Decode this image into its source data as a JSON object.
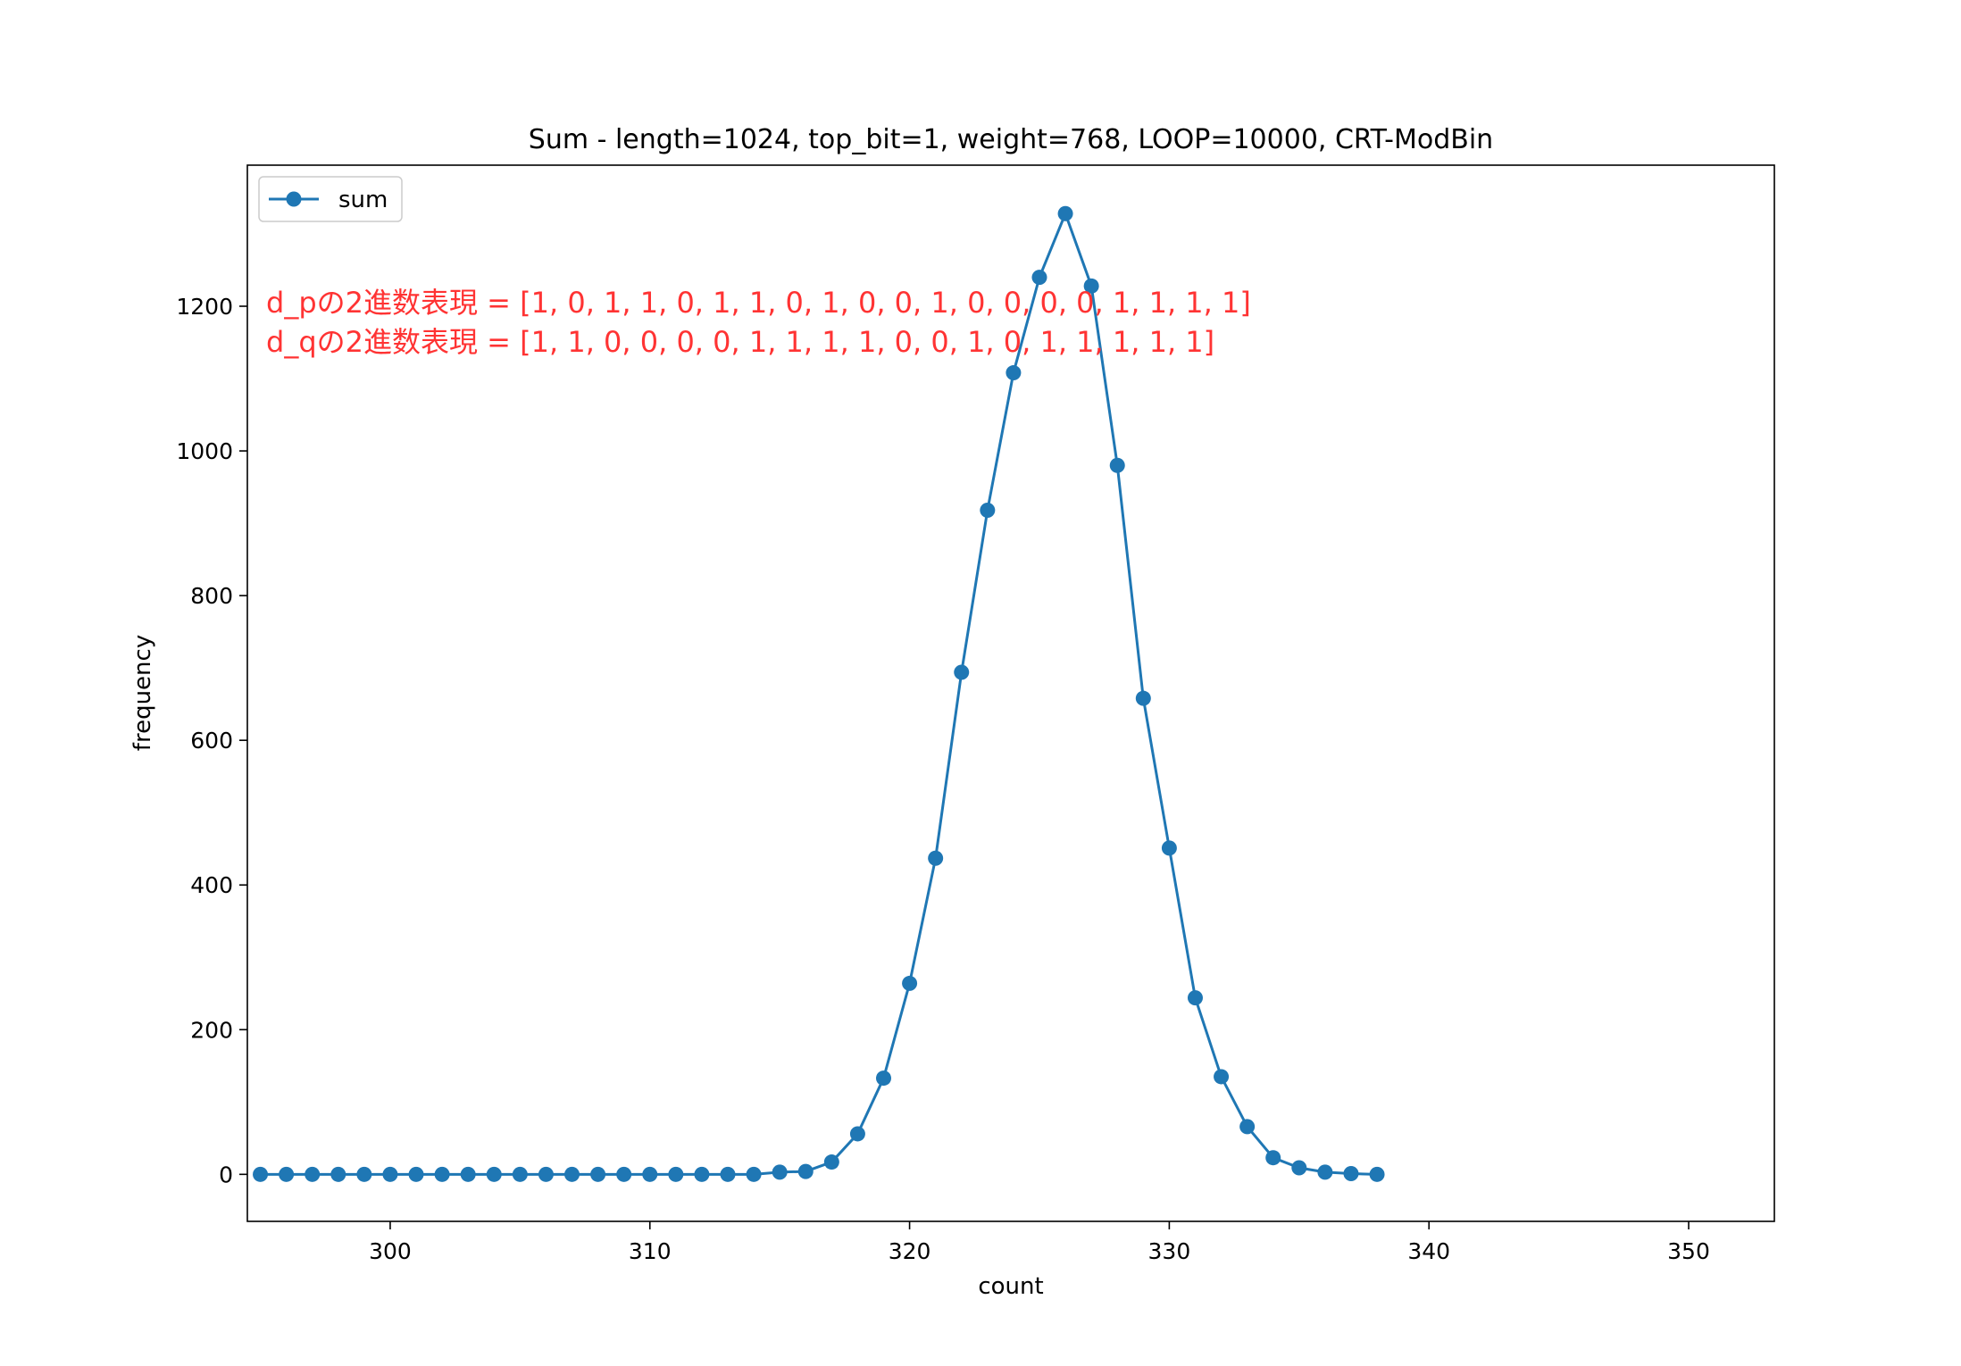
{
  "chart_data": {
    "type": "line",
    "title": "Sum - length=1024, top_bit=1, weight=768, LOOP=10000, CRT-ModBin",
    "xlabel": "count",
    "ylabel": "frequency",
    "xlim": [
      294.5,
      353.3
    ],
    "ylim": [
      -65,
      1395
    ],
    "xticks": [
      300,
      310,
      320,
      330,
      340,
      350
    ],
    "yticks": [
      0,
      200,
      400,
      600,
      800,
      1000,
      1200
    ],
    "grid": false,
    "legend_position": "upper-left",
    "colors": {
      "series": "#1f77b4",
      "annotation": "#ff3333"
    },
    "annotations": [
      "d_pの2進数表現 = [1, 0, 1, 1, 0, 1, 1, 0, 1, 0, 0, 1, 0, 0, 0, 0, 1, 1, 1, 1]",
      "d_qの2進数表現 = [1, 1, 0, 0, 0, 0, 1, 1, 1, 1, 0, 0, 1, 0, 1, 1, 1, 1, 1]"
    ],
    "series": [
      {
        "name": "sum",
        "marker": "circle",
        "x": [
          295,
          296,
          297,
          298,
          299,
          300,
          301,
          302,
          303,
          304,
          305,
          306,
          307,
          308,
          309,
          310,
          311,
          312,
          313,
          314,
          315,
          316,
          317,
          318,
          319,
          320,
          321,
          322,
          323,
          324,
          325,
          326,
          327,
          328,
          329,
          330,
          331,
          332,
          333,
          334,
          335,
          336,
          337,
          338
        ],
        "y": [
          0,
          0,
          0,
          0,
          0,
          0,
          0,
          0,
          0,
          0,
          0,
          0,
          0,
          0,
          0,
          0,
          0,
          0,
          0,
          0,
          3,
          4,
          17,
          56,
          133,
          264,
          437,
          694,
          918,
          1108,
          1240,
          1328,
          1228,
          980,
          658,
          451,
          244,
          135,
          66,
          23,
          9,
          3,
          1,
          0
        ]
      }
    ]
  }
}
